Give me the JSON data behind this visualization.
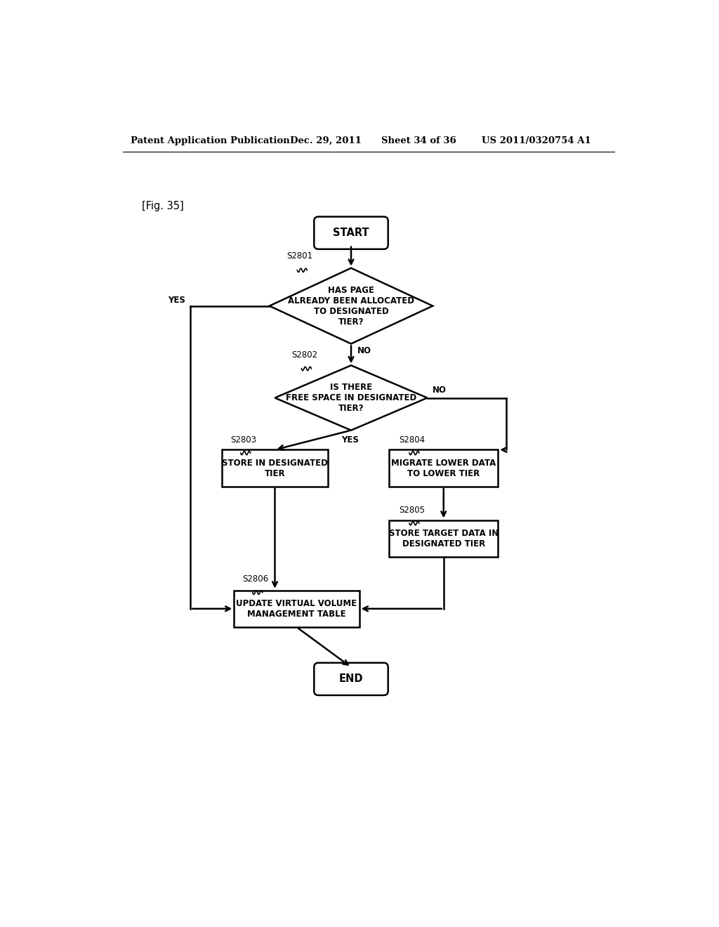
{
  "title_header": "Patent Application Publication",
  "title_date": "Dec. 29, 2011",
  "title_sheet": "Sheet 34 of 36",
  "title_patent": "US 2011/0320754 A1",
  "fig_label": "[Fig. 35]",
  "background_color": "#ffffff",
  "start_label": "START",
  "end_label": "END",
  "d1_text": "HAS PAGE\nALREADY BEEN ALLOCATED\nTO DESIGNATED\nTIER?",
  "d1_step": "S2801",
  "d2_text": "IS THERE\nFREE SPACE IN DESIGNATED\nTIER?",
  "d2_step": "S2802",
  "b1_text": "STORE IN DESIGNATED\nTIER",
  "b1_step": "S2803",
  "b2_text": "MIGRATE LOWER DATA\nTO LOWER TIER",
  "b2_step": "S2804",
  "b3_text": "STORE TARGET DATA IN\nDESIGNATED TIER",
  "b3_step": "S2805",
  "b4_text": "UPDATE VIRTUAL VOLUME\nMANAGEMENT TABLE",
  "b4_step": "S2806",
  "yes_label": "YES",
  "no_label": "NO"
}
